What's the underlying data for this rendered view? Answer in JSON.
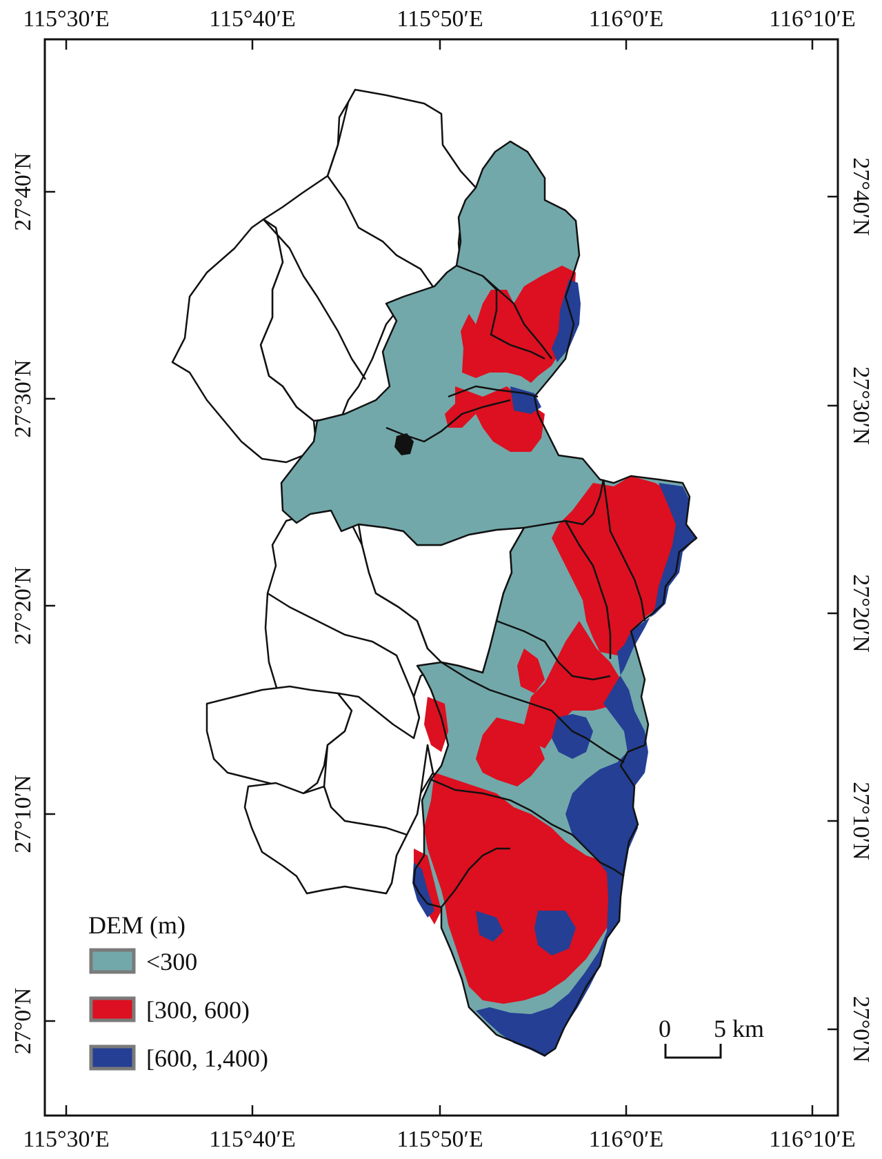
{
  "map": {
    "top_longitudes": [
      "115°30′E",
      "115°40′E",
      "115°50′E",
      "116°0′E",
      "116°10′E"
    ],
    "bottom_longitudes": [
      "115°30′E",
      "115°40′E",
      "115°50′E",
      "116°0′E",
      "116°10′E"
    ],
    "left_latitudes": [
      "27°40′N",
      "27°30′N",
      "27°20′N",
      "27°10′N",
      "27°0′N"
    ],
    "right_latitudes": [
      "27°40′N",
      "27°30′N",
      "27°20′N",
      "27°10′N",
      "27°0′N"
    ]
  },
  "legend": {
    "title": "DEM (m)",
    "items": [
      {
        "label": "<300",
        "color": "#72a8aa"
      },
      {
        "label": "[300, 600)",
        "color": "#dc1020"
      },
      {
        "label": "[600, 1,400)",
        "color": "#243f94"
      }
    ]
  },
  "scalebar": {
    "start_label": "0",
    "end_label": "5 km"
  },
  "colors": {
    "low": "#72a8aa",
    "mid": "#dc1020",
    "high": "#243f94",
    "boundary": "#111111",
    "frame": "#111111"
  }
}
